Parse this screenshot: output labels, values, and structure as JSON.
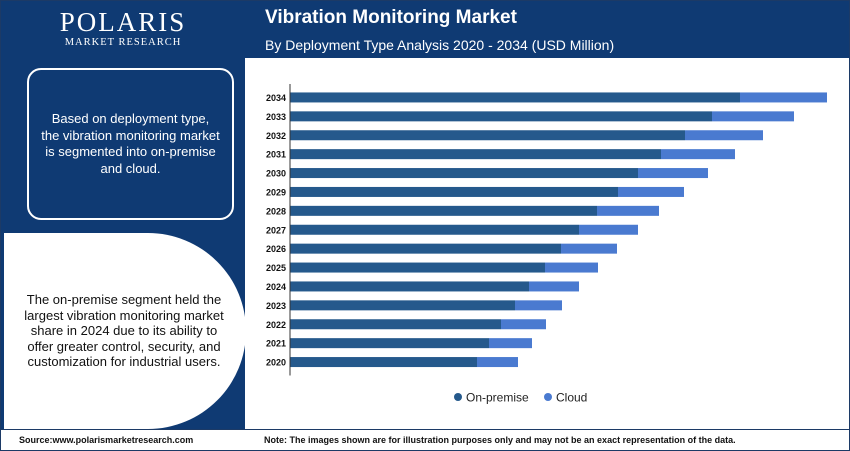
{
  "brand": {
    "name": "POLARIS",
    "tagline": "MARKET RESEARCH"
  },
  "header": {
    "title": "Vibration Monitoring Market",
    "subtitle": "By Deployment Type Analysis 2020 - 2034 (USD Million)"
  },
  "panel": {
    "box_text": "Based on deployment type, the vibration monitoring market is segmented into on-premise and cloud.",
    "circle_text": "The on-premise segment held the largest vibration monitoring market share in 2024 due to its ability to offer greater control, security, and customization for industrial users."
  },
  "footer": {
    "source": "Source:www.polarismarketresearch.com",
    "note": "Note: The images shown are for illustration purposes only and may not be an exact representation of the data."
  },
  "colors": {
    "navy": "#0f3a73",
    "on_premise": "#25598c",
    "cloud": "#4a7ad0"
  },
  "chart_data": {
    "type": "bar",
    "orientation": "horizontal",
    "stacked": true,
    "title": "Vibration Monitoring Market",
    "subtitle": "By Deployment Type Analysis 2020 - 2034 (USD Million)",
    "categories": [
      "2034",
      "2033",
      "2032",
      "2031",
      "2030",
      "2029",
      "2028",
      "2027",
      "2026",
      "2025",
      "2024",
      "2023",
      "2022",
      "2021",
      "2020"
    ],
    "series": [
      {
        "name": "On-premise",
        "color": "#25598c",
        "values": [
          450,
          422,
          395,
          371,
          348,
          328,
          307,
          289,
          271,
          255,
          239,
          225,
          211,
          199,
          187
        ]
      },
      {
        "name": "Cloud",
        "color": "#4a7ad0",
        "values": [
          87,
          82,
          78,
          74,
          70,
          66,
          62,
          59,
          56,
          53,
          50,
          47,
          45,
          43,
          41
        ]
      }
    ],
    "xlim": [
      0,
      540
    ],
    "grid": false,
    "legend": "bottom-center"
  }
}
